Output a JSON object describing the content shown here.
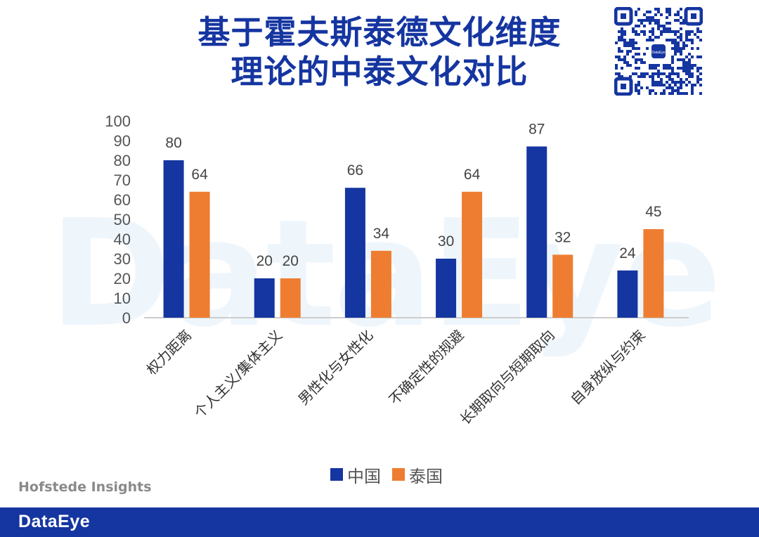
{
  "title": {
    "line1": "基于霍夫斯泰德文化维度",
    "line2": "理论的中泰文化对比"
  },
  "watermark": "DataEye",
  "source": "Hofstede Insights",
  "footer": {
    "logo": "DataEye"
  },
  "qr_badge": "DataEye",
  "colors": {
    "china": "#1535a0",
    "thailand": "#ee7d31",
    "brand": "#1535a0"
  },
  "chart_data": {
    "type": "bar",
    "title": "基于霍夫斯泰德文化维度理论的中泰文化对比",
    "categories": [
      "权力距离",
      "个人主义/集体主义",
      "男性化与女性化",
      "不确定性的规避",
      "长期取向与短期取向",
      "自身放纵与约束"
    ],
    "series": [
      {
        "name": "中国",
        "values": [
          80,
          20,
          66,
          30,
          87,
          24
        ]
      },
      {
        "name": "泰国",
        "values": [
          64,
          20,
          34,
          64,
          32,
          45
        ]
      }
    ],
    "ylim": [
      0,
      100
    ],
    "yticks": [
      0,
      10,
      20,
      30,
      40,
      50,
      60,
      70,
      80,
      90,
      100
    ],
    "xlabel": "",
    "ylabel": "",
    "grid": false,
    "legend_position": "bottom"
  }
}
